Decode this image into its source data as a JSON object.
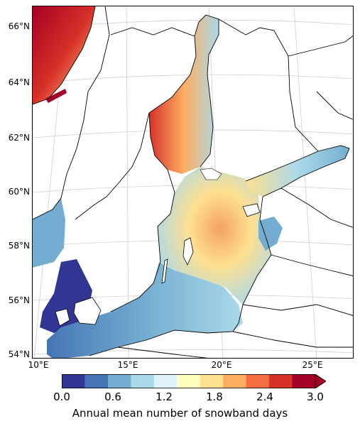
{
  "map": {
    "lat_labels": [
      "66°N",
      "64°N",
      "62°N",
      "60°N",
      "58°N",
      "56°N",
      "54°N"
    ],
    "lon_labels": [
      "10°E",
      "15°E",
      "20°E",
      "25°E"
    ]
  },
  "colorbar": {
    "label": "Annual mean number of snowband days",
    "ticks": [
      "0.0",
      "0.6",
      "1.2",
      "1.8",
      "2.4",
      "3.0"
    ],
    "colors": [
      "#313695",
      "#4575b4",
      "#74add1",
      "#abd9e9",
      "#e0f3f8",
      "#ffffbf",
      "#fee090",
      "#fdae61",
      "#f46d43",
      "#d73027",
      "#a50026"
    ]
  }
}
